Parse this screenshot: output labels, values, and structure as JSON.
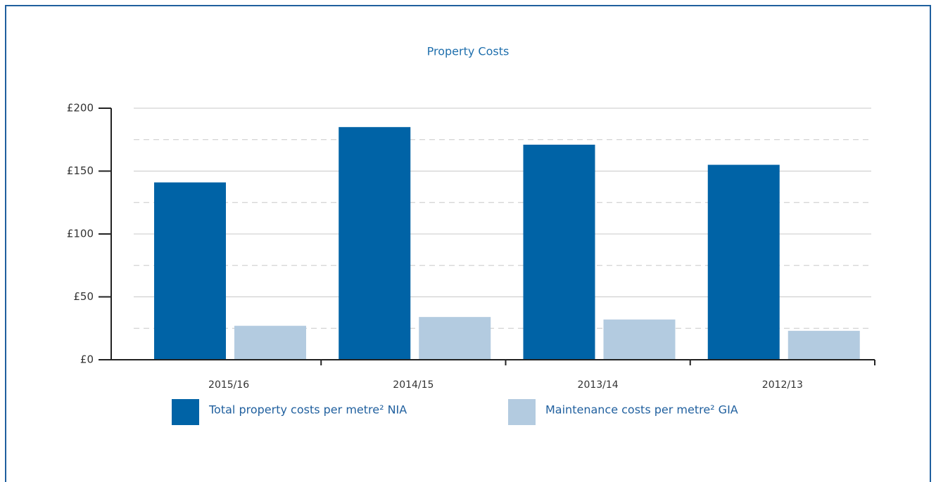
{
  "chart_data": {
    "type": "bar",
    "title": "Property Costs",
    "categories": [
      "2015/16",
      "2014/15",
      "2013/14",
      "2012/13"
    ],
    "series": [
      {
        "name": "Total property costs per metre² NIA",
        "color": "#0063a6",
        "values": [
          141,
          185,
          171,
          155
        ]
      },
      {
        "name": "Maintenance costs per metre² GIA",
        "color": "#b3cbe0",
        "values": [
          27,
          34,
          32,
          23
        ]
      }
    ],
    "ylim": [
      0,
      200
    ],
    "yticks": [
      {
        "value": 0,
        "label": "£0"
      },
      {
        "value": 50,
        "label": "£50"
      },
      {
        "value": 100,
        "label": "£100"
      },
      {
        "value": 150,
        "label": "£150"
      },
      {
        "value": 200,
        "label": "£200"
      }
    ],
    "minor_yticks": [
      25,
      75,
      125,
      175
    ],
    "grid": true,
    "legend": "bottom"
  }
}
